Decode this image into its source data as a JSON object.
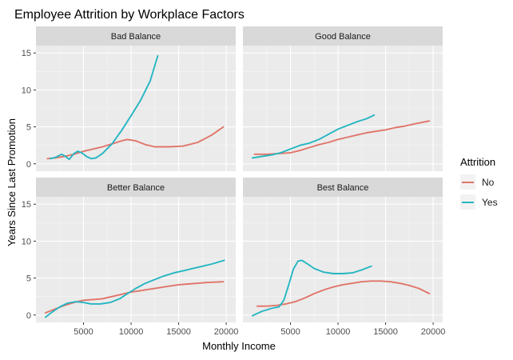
{
  "chart_data": {
    "type": "line",
    "title": "Employee Attrition by Workplace Factors",
    "xlabel": "Monthly Income",
    "ylabel": "Years Since Last Promotion",
    "xlim": [
      0,
      21000
    ],
    "ylim": [
      -1,
      16
    ],
    "x_ticks": [
      5000,
      10000,
      15000,
      20000
    ],
    "y_ticks": [
      0,
      5,
      10,
      15
    ],
    "grid": true,
    "legend": {
      "title": "Attrition",
      "position": "right",
      "entries": [
        {
          "label": "No",
          "color": "#E0756A"
        },
        {
          "label": "Yes",
          "color": "#25B6C2"
        }
      ]
    },
    "facets": [
      {
        "label": "Bad Balance",
        "series": [
          {
            "name": "No",
            "color": "#E0756A",
            "points": [
              [
                1200,
                0.7
              ],
              [
                2000,
                0.8
              ],
              [
                3000,
                1.0
              ],
              [
                4000,
                1.3
              ],
              [
                5000,
                1.7
              ],
              [
                6000,
                2.0
              ],
              [
                7000,
                2.3
              ],
              [
                8000,
                2.7
              ],
              [
                9000,
                3.1
              ],
              [
                9600,
                3.3
              ],
              [
                10500,
                3.1
              ],
              [
                11500,
                2.6
              ],
              [
                12500,
                2.3
              ],
              [
                14000,
                2.3
              ],
              [
                15500,
                2.4
              ],
              [
                17000,
                2.9
              ],
              [
                18500,
                3.9
              ],
              [
                19700,
                5.0
              ]
            ]
          },
          {
            "name": "Yes",
            "color": "#25B6C2",
            "points": [
              [
                1500,
                0.7
              ],
              [
                2100,
                0.9
              ],
              [
                2700,
                1.3
              ],
              [
                3100,
                1.0
              ],
              [
                3500,
                0.6
              ],
              [
                4000,
                1.4
              ],
              [
                4400,
                1.7
              ],
              [
                4800,
                1.5
              ],
              [
                5300,
                1.0
              ],
              [
                5800,
                0.7
              ],
              [
                6300,
                0.8
              ],
              [
                7000,
                1.4
              ],
              [
                8000,
                2.7
              ],
              [
                9000,
                4.5
              ],
              [
                10000,
                6.5
              ],
              [
                11000,
                8.6
              ],
              [
                12000,
                11.2
              ],
              [
                12800,
                14.6
              ]
            ]
          }
        ]
      },
      {
        "label": "Good Balance",
        "series": [
          {
            "name": "No",
            "color": "#E0756A",
            "points": [
              [
                1200,
                1.3
              ],
              [
                2500,
                1.3
              ],
              [
                4000,
                1.4
              ],
              [
                5000,
                1.5
              ],
              [
                6000,
                1.8
              ],
              [
                7000,
                2.2
              ],
              [
                8000,
                2.6
              ],
              [
                9000,
                2.9
              ],
              [
                10000,
                3.3
              ],
              [
                11000,
                3.6
              ],
              [
                12000,
                3.9
              ],
              [
                13000,
                4.2
              ],
              [
                14000,
                4.4
              ],
              [
                15000,
                4.6
              ],
              [
                16000,
                4.9
              ],
              [
                17000,
                5.1
              ],
              [
                18000,
                5.4
              ],
              [
                19600,
                5.8
              ]
            ]
          },
          {
            "name": "Yes",
            "color": "#25B6C2",
            "points": [
              [
                1000,
                0.8
              ],
              [
                2000,
                1.0
              ],
              [
                3000,
                1.2
              ],
              [
                4000,
                1.5
              ],
              [
                5000,
                2.0
              ],
              [
                6000,
                2.5
              ],
              [
                7000,
                2.8
              ],
              [
                8000,
                3.3
              ],
              [
                9000,
                4.0
              ],
              [
                10000,
                4.7
              ],
              [
                11000,
                5.2
              ],
              [
                12000,
                5.7
              ],
              [
                13000,
                6.1
              ],
              [
                13800,
                6.6
              ]
            ]
          }
        ]
      },
      {
        "label": "Better Balance",
        "series": [
          {
            "name": "No",
            "color": "#E0756A",
            "points": [
              [
                1000,
                0.3
              ],
              [
                2000,
                0.8
              ],
              [
                3000,
                1.3
              ],
              [
                4000,
                1.7
              ],
              [
                5000,
                2.0
              ],
              [
                6000,
                2.1
              ],
              [
                7000,
                2.2
              ],
              [
                8000,
                2.5
              ],
              [
                9000,
                2.8
              ],
              [
                10000,
                3.1
              ],
              [
                11000,
                3.3
              ],
              [
                12000,
                3.5
              ],
              [
                13000,
                3.7
              ],
              [
                14000,
                3.9
              ],
              [
                15000,
                4.1
              ],
              [
                16000,
                4.2
              ],
              [
                17000,
                4.3
              ],
              [
                18000,
                4.4
              ],
              [
                19700,
                4.5
              ]
            ]
          },
          {
            "name": "Yes",
            "color": "#25B6C2",
            "points": [
              [
                1000,
                -0.3
              ],
              [
                1700,
                0.4
              ],
              [
                2500,
                1.1
              ],
              [
                3300,
                1.6
              ],
              [
                4200,
                1.8
              ],
              [
                5000,
                1.7
              ],
              [
                5800,
                1.5
              ],
              [
                6800,
                1.5
              ],
              [
                7800,
                1.7
              ],
              [
                8800,
                2.2
              ],
              [
                9500,
                2.8
              ],
              [
                10500,
                3.6
              ],
              [
                11500,
                4.3
              ],
              [
                12500,
                4.8
              ],
              [
                13500,
                5.3
              ],
              [
                14500,
                5.7
              ],
              [
                15500,
                6.0
              ],
              [
                16500,
                6.3
              ],
              [
                17500,
                6.6
              ],
              [
                18500,
                6.9
              ],
              [
                19800,
                7.4
              ]
            ]
          }
        ]
      },
      {
        "label": "Best Balance",
        "series": [
          {
            "name": "No",
            "color": "#E0756A",
            "points": [
              [
                1500,
                1.2
              ],
              [
                2500,
                1.2
              ],
              [
                3500,
                1.3
              ],
              [
                4500,
                1.5
              ],
              [
                5500,
                1.8
              ],
              [
                6500,
                2.3
              ],
              [
                7500,
                2.9
              ],
              [
                8500,
                3.4
              ],
              [
                9500,
                3.8
              ],
              [
                10500,
                4.1
              ],
              [
                11500,
                4.3
              ],
              [
                12500,
                4.5
              ],
              [
                13500,
                4.6
              ],
              [
                14500,
                4.6
              ],
              [
                15500,
                4.5
              ],
              [
                16500,
                4.3
              ],
              [
                17500,
                4.0
              ],
              [
                18500,
                3.6
              ],
              [
                19600,
                2.9
              ]
            ]
          },
          {
            "name": "Yes",
            "color": "#25B6C2",
            "points": [
              [
                1000,
                -0.1
              ],
              [
                2000,
                0.5
              ],
              [
                3000,
                0.9
              ],
              [
                3800,
                1.1
              ],
              [
                4300,
                2.0
              ],
              [
                4800,
                4.0
              ],
              [
                5300,
                6.2
              ],
              [
                5800,
                7.3
              ],
              [
                6200,
                7.4
              ],
              [
                6800,
                6.9
              ],
              [
                7500,
                6.3
              ],
              [
                8500,
                5.8
              ],
              [
                9500,
                5.6
              ],
              [
                10500,
                5.6
              ],
              [
                11500,
                5.7
              ],
              [
                12500,
                6.1
              ],
              [
                13500,
                6.6
              ]
            ]
          }
        ]
      }
    ]
  }
}
